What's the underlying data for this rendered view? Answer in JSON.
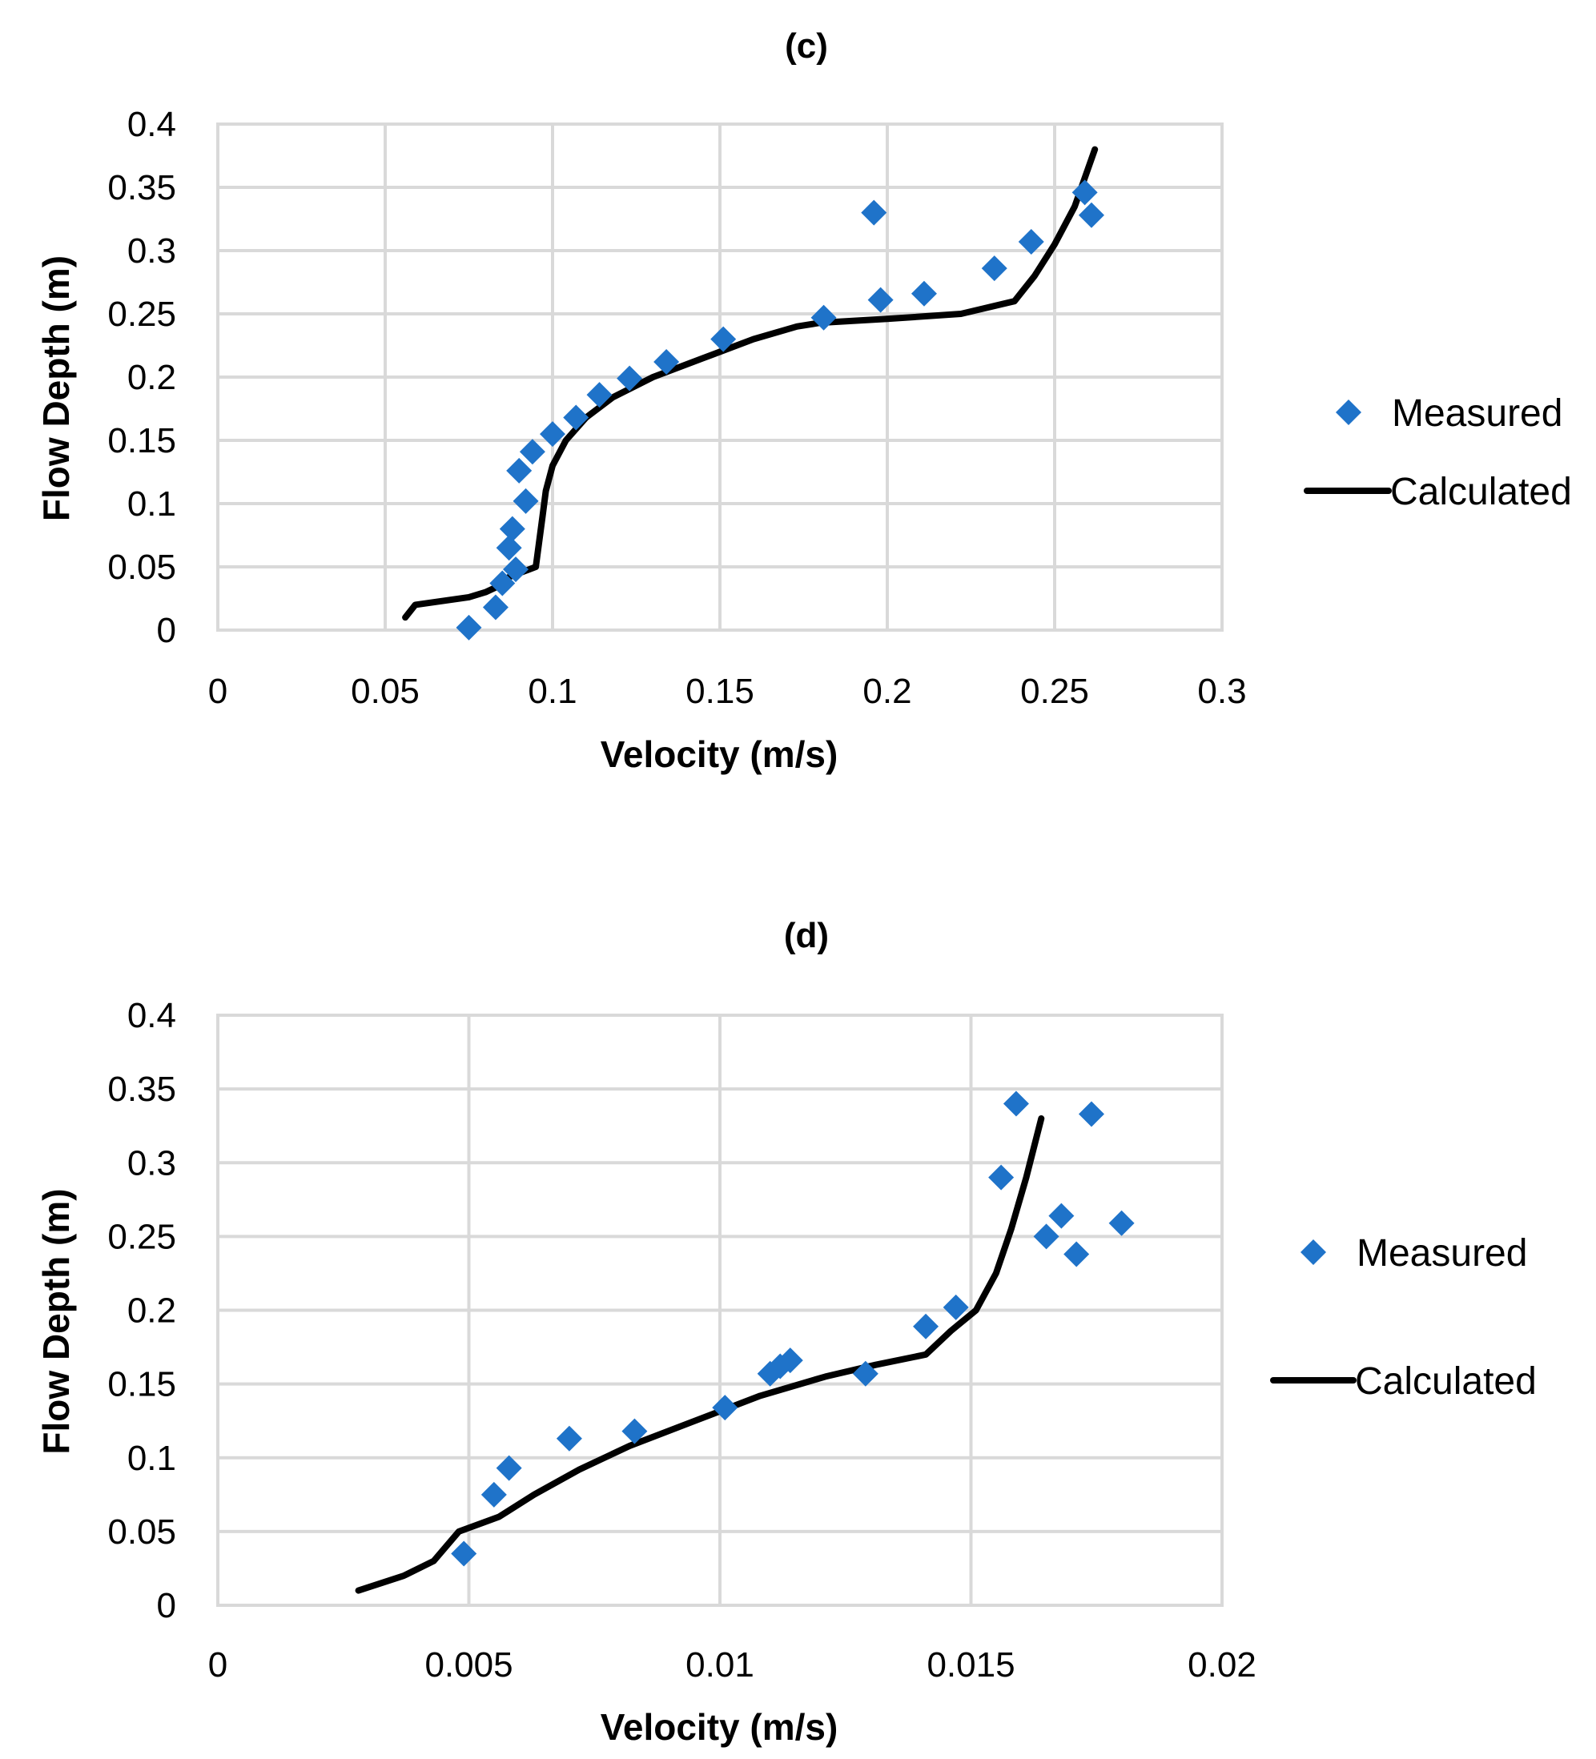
{
  "chart_data": [
    {
      "type": "scatter",
      "title": "(c)",
      "xlabel": "Velocity (m/s)",
      "ylabel": "Flow Depth (m)",
      "xlim": [
        0,
        0.3
      ],
      "ylim": [
        0,
        0.4
      ],
      "xticks": [
        0,
        0.05,
        0.1,
        0.15,
        0.2,
        0.25,
        0.3
      ],
      "xtick_labels": [
        "0",
        "0.05",
        "0.1",
        "0.15",
        "0.2",
        "0.25",
        "0.3"
      ],
      "yticks": [
        0,
        0.05,
        0.1,
        0.15,
        0.2,
        0.25,
        0.3,
        0.35,
        0.4
      ],
      "ytick_labels": [
        "0",
        "0.05",
        "0.1",
        "0.15",
        "0.2",
        "0.25",
        "0.3",
        "0.35",
        "0.4"
      ],
      "legend_position": "right",
      "series": [
        {
          "name": "Measured",
          "kind": "markers",
          "color": "#1f73c9",
          "x": [
            0.075,
            0.083,
            0.085,
            0.089,
            0.087,
            0.088,
            0.092,
            0.09,
            0.094,
            0.1,
            0.107,
            0.114,
            0.123,
            0.134,
            0.151,
            0.181,
            0.198,
            0.211,
            0.232,
            0.243,
            0.196,
            0.259,
            0.261
          ],
          "y": [
            0.002,
            0.018,
            0.037,
            0.048,
            0.065,
            0.08,
            0.102,
            0.126,
            0.141,
            0.155,
            0.168,
            0.186,
            0.199,
            0.212,
            0.23,
            0.247,
            0.261,
            0.266,
            0.286,
            0.307,
            0.33,
            0.346,
            0.328
          ]
        },
        {
          "name": "Calculated",
          "kind": "line",
          "color": "#000000",
          "x": [
            0.056,
            0.059,
            0.075,
            0.08,
            0.084,
            0.087,
            0.09,
            0.093,
            0.095,
            0.096,
            0.097,
            0.098,
            0.1,
            0.104,
            0.11,
            0.118,
            0.13,
            0.145,
            0.16,
            0.173,
            0.18,
            0.2,
            0.222,
            0.238,
            0.244,
            0.25,
            0.256,
            0.262
          ],
          "y": [
            0.01,
            0.02,
            0.026,
            0.03,
            0.035,
            0.042,
            0.045,
            0.048,
            0.05,
            0.07,
            0.09,
            0.11,
            0.13,
            0.15,
            0.168,
            0.184,
            0.2,
            0.215,
            0.23,
            0.24,
            0.243,
            0.246,
            0.25,
            0.26,
            0.28,
            0.305,
            0.335,
            0.38
          ]
        }
      ]
    },
    {
      "type": "scatter",
      "title": "(d)",
      "xlabel": "Velocity (m/s)",
      "ylabel": "Flow Depth (m)",
      "xlim": [
        0,
        0.02
      ],
      "ylim": [
        0,
        0.4
      ],
      "xticks": [
        0,
        0.005,
        0.01,
        0.015,
        0.02
      ],
      "xtick_labels": [
        "0",
        "0.005",
        "0.01",
        "0.015",
        "0.02"
      ],
      "yticks": [
        0,
        0.05,
        0.1,
        0.15,
        0.2,
        0.25,
        0.3,
        0.35,
        0.4
      ],
      "ytick_labels": [
        "0",
        "0.05",
        "0.1",
        "0.15",
        "0.2",
        "0.25",
        "0.3",
        "0.35",
        "0.4"
      ],
      "legend_position": "right",
      "series": [
        {
          "name": "Measured",
          "kind": "markers",
          "color": "#1f73c9",
          "x": [
            0.0049,
            0.0055,
            0.0058,
            0.007,
            0.0083,
            0.0101,
            0.011,
            0.0112,
            0.0114,
            0.0129,
            0.0141,
            0.0147,
            0.0156,
            0.0159,
            0.0165,
            0.0168,
            0.0171,
            0.0174,
            0.018
          ],
          "y": [
            0.035,
            0.075,
            0.093,
            0.113,
            0.118,
            0.134,
            0.157,
            0.162,
            0.166,
            0.157,
            0.189,
            0.202,
            0.29,
            0.34,
            0.25,
            0.264,
            0.238,
            0.333,
            0.259
          ]
        },
        {
          "name": "Calculated",
          "kind": "line",
          "color": "#000000",
          "x": [
            0.0028,
            0.0037,
            0.0043,
            0.0048,
            0.0056,
            0.0063,
            0.0072,
            0.0082,
            0.0095,
            0.0108,
            0.0121,
            0.0131,
            0.0141,
            0.0146,
            0.0151,
            0.0155,
            0.0158,
            0.0161,
            0.0164
          ],
          "y": [
            0.01,
            0.02,
            0.03,
            0.05,
            0.06,
            0.075,
            0.092,
            0.108,
            0.125,
            0.142,
            0.155,
            0.163,
            0.17,
            0.186,
            0.2,
            0.225,
            0.255,
            0.29,
            0.33
          ]
        }
      ]
    }
  ]
}
